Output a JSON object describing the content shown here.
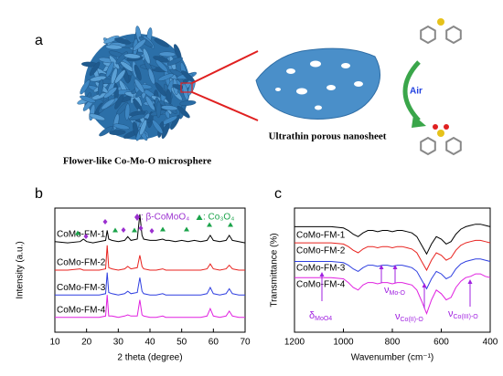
{
  "panel_a": {
    "label": "a",
    "microsphere_caption": "Flower-like Co-Mo-O microsphere",
    "nanosheet_caption": "Ultrathin porous nanosheet",
    "arrow_label": "Air"
  },
  "chart_data": [
    {
      "type": "line",
      "panel_label": "b",
      "xlabel": "2 theta (degree)",
      "ylabel": "Intensity (a.u.)",
      "legend": [
        {
          "text": ": β-CoMoO₄",
          "color": "#9b30d0"
        },
        {
          "text": ": Co₃O₄",
          "color": "#1aa34a"
        }
      ],
      "x": [
        10,
        14,
        18,
        19,
        20,
        22,
        24,
        26,
        26.5,
        27,
        28,
        30,
        32,
        33,
        34,
        36,
        36.8,
        37.5,
        38,
        40,
        42,
        44,
        45,
        46,
        48,
        50,
        52,
        54,
        56,
        58,
        59,
        60,
        62,
        64,
        65,
        66,
        68,
        70
      ],
      "xlim": [
        10,
        70
      ],
      "xticks": [
        10,
        20,
        30,
        40,
        50,
        60,
        70
      ],
      "ylim": [
        0,
        100
      ],
      "series": [
        {
          "name": "CoMo-FM-1",
          "color": "#000000",
          "values": [
            73,
            72,
            73,
            75,
            73,
            72,
            73,
            74,
            82,
            75,
            74,
            73,
            74,
            77,
            74,
            75,
            95,
            78,
            75,
            74,
            74,
            75,
            74,
            74,
            73,
            74,
            73,
            74,
            73,
            74,
            78,
            74,
            73,
            74,
            78,
            74,
            73,
            72
          ]
        },
        {
          "name": "CoMo-FM-2",
          "color": "#e8221e",
          "values": [
            50,
            50,
            51,
            50,
            50,
            50,
            50,
            51,
            70,
            52,
            51,
            50,
            51,
            53,
            51,
            52,
            62,
            53,
            51,
            50,
            50,
            51,
            50,
            50,
            50,
            50,
            50,
            50,
            50,
            51,
            55,
            51,
            50,
            51,
            54,
            51,
            50,
            50
          ]
        },
        {
          "name": "CoMo-FM-3",
          "color": "#2f3fe0",
          "values": [
            30,
            30,
            30,
            30,
            30,
            30,
            30,
            31,
            48,
            32,
            31,
            30,
            31,
            33,
            31,
            32,
            44,
            33,
            31,
            30,
            30,
            31,
            30,
            30,
            30,
            30,
            30,
            30,
            30,
            31,
            36,
            31,
            30,
            31,
            35,
            31,
            30,
            30
          ]
        },
        {
          "name": "CoMo-FM-4",
          "color": "#e020e0",
          "values": [
            12,
            12,
            12,
            12,
            12,
            12,
            12,
            13,
            30,
            13,
            13,
            12,
            13,
            14,
            13,
            13,
            26,
            14,
            13,
            12,
            12,
            13,
            12,
            12,
            12,
            12,
            12,
            12,
            12,
            13,
            19,
            13,
            12,
            13,
            17,
            13,
            12,
            12
          ]
        }
      ]
    },
    {
      "type": "line",
      "panel_label": "c",
      "xlabel": "Wavenumber (cm⁻¹)",
      "ylabel": "Transmittance (%)",
      "annotations": [
        {
          "symbol": "δ",
          "sub": "MoO4"
        },
        {
          "symbol": "ν",
          "sub": "Mo-O"
        },
        {
          "symbol": "ν",
          "sub": "Co(II)-O"
        },
        {
          "symbol": "ν",
          "sub": "Co(III)-O"
        }
      ],
      "x": [
        1200,
        1150,
        1100,
        1050,
        1000,
        980,
        960,
        940,
        920,
        900,
        880,
        860,
        840,
        820,
        800,
        780,
        760,
        740,
        720,
        700,
        680,
        660,
        640,
        620,
        600,
        580,
        560,
        540,
        520,
        500,
        480,
        460,
        440,
        420,
        400
      ],
      "xlim": [
        1200,
        400
      ],
      "xticks": [
        1200,
        1000,
        800,
        600,
        400
      ],
      "ylim": [
        0,
        100
      ],
      "series": [
        {
          "name": "CoMo-FM-1",
          "color": "#000000",
          "values": [
            85,
            85,
            85,
            85,
            84,
            82,
            79,
            77,
            80,
            82,
            82,
            81,
            82,
            82,
            81,
            82,
            82,
            81,
            80,
            77,
            70,
            63,
            71,
            77,
            75,
            71,
            73,
            79,
            83,
            85,
            86,
            87,
            87,
            86,
            85
          ]
        },
        {
          "name": "CoMo-FM-2",
          "color": "#e8221e",
          "values": [
            72,
            72,
            72,
            72,
            71,
            69,
            66,
            64,
            67,
            69,
            69,
            68,
            69,
            69,
            68,
            69,
            69,
            68,
            67,
            64,
            57,
            50,
            58,
            64,
            62,
            58,
            60,
            66,
            70,
            72,
            73,
            74,
            74,
            73,
            72
          ]
        },
        {
          "name": "CoMo-FM-3",
          "color": "#2f3fe0",
          "values": [
            57,
            57,
            57,
            57,
            56,
            54,
            51,
            49,
            52,
            54,
            54,
            53,
            54,
            54,
            53,
            54,
            54,
            53,
            52,
            49,
            42,
            35,
            43,
            49,
            47,
            43,
            45,
            51,
            55,
            57,
            58,
            59,
            59,
            58,
            57
          ]
        },
        {
          "name": "CoMo-FM-4",
          "color": "#e020e0",
          "values": [
            44,
            44,
            44,
            44,
            43,
            40,
            36,
            34,
            38,
            40,
            40,
            39,
            40,
            40,
            39,
            40,
            40,
            39,
            38,
            34,
            25,
            15,
            26,
            34,
            31,
            26,
            28,
            36,
            41,
            44,
            45,
            47,
            47,
            45,
            44
          ]
        }
      ]
    }
  ]
}
